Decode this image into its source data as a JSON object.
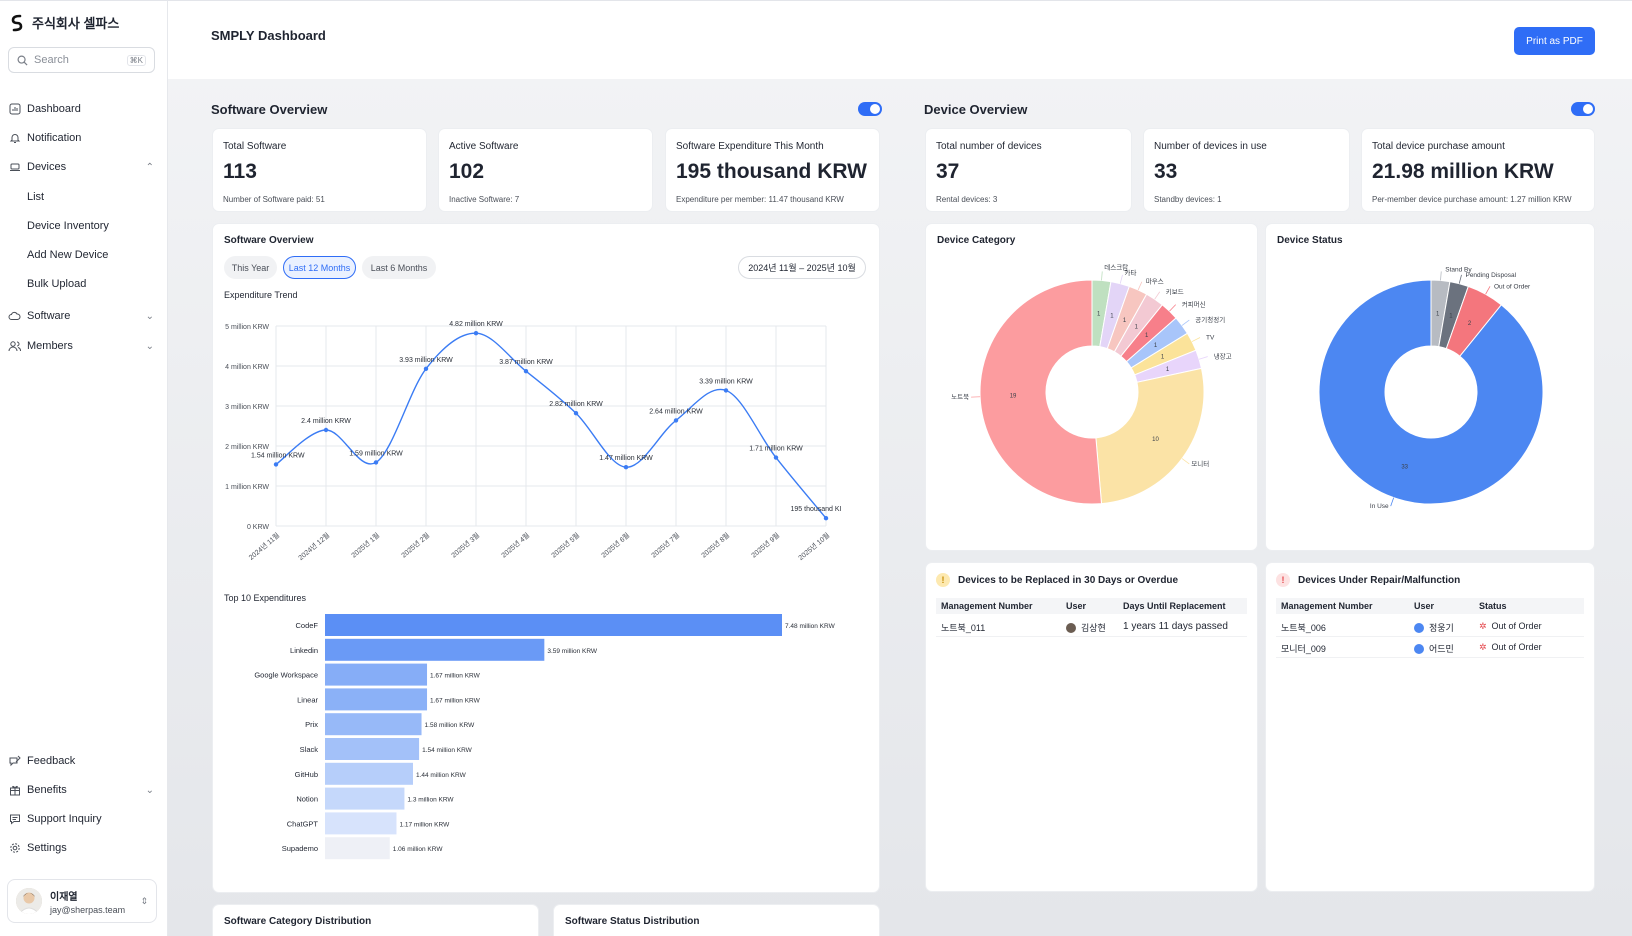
{
  "app": {
    "brand": "주식회사 셀파스"
  },
  "search": {
    "placeholder": "Search",
    "shortcut": "⌘K"
  },
  "sidebar": {
    "dashboard": "Dashboard",
    "notification": "Notification",
    "devices": "Devices",
    "devices_sub": [
      "List",
      "Device Inventory",
      "Add New Device",
      "Bulk Upload"
    ],
    "software": "Software",
    "members": "Members",
    "feedback": "Feedback",
    "benefits": "Benefits",
    "support": "Support Inquiry",
    "settings": "Settings"
  },
  "user": {
    "name": "이재열",
    "email": "jay@sherpas.team"
  },
  "header": {
    "title": "SMPLY Dashboard",
    "print_button": "Print as PDF"
  },
  "software_overview": {
    "title": "Software Overview",
    "stats": [
      {
        "label": "Total Software",
        "value": "113",
        "sub": "Number of Software paid: 51"
      },
      {
        "label": "Active Software",
        "value": "102",
        "sub": "Inactive Software: 7"
      },
      {
        "label": "Software Expenditure This Month",
        "value": "195 thousand KRW",
        "sub": "Expenditure per member: 11.47 thousand KRW"
      }
    ],
    "panel_title": "Software Overview",
    "filters": [
      "This Year",
      "Last 12 Months",
      "Last 6 Months"
    ],
    "date_range": "2024년 11월 – 2025년 10월",
    "trend_title": "Expenditure Trend",
    "top10_title": "Top 10 Expenditures"
  },
  "device_overview": {
    "title": "Device Overview",
    "stats": [
      {
        "label": "Total number of devices",
        "value": "37",
        "sub": "Rental devices: 3"
      },
      {
        "label": "Number of devices in use",
        "value": "33",
        "sub": "Standby devices: 1"
      },
      {
        "label": "Total device purchase amount",
        "value": "21.98 million KRW",
        "sub": "Per-member device purchase amount: 1.27 million KRW"
      }
    ],
    "category_title": "Device Category",
    "status_title": "Device Status"
  },
  "replace_table": {
    "title": "Devices to be Replaced in 30 Days or Overdue",
    "headers": [
      "Management Number",
      "User",
      "Days Until Replacement"
    ],
    "rows": [
      {
        "number": "노트북_011",
        "user": "김상현",
        "days": "1 years 11 days passed"
      }
    ]
  },
  "repair_table": {
    "title": "Devices Under Repair/Malfunction",
    "headers": [
      "Management Number",
      "User",
      "Status"
    ],
    "rows": [
      {
        "number": "노트북_006",
        "user": "정웅기",
        "status": "Out of Order"
      },
      {
        "number": "모니터_009",
        "user": "어드민",
        "status": "Out of Order"
      }
    ]
  },
  "bottom_cards": {
    "category": "Software Category Distribution",
    "status": "Software Status Distribution"
  },
  "chart_data": [
    {
      "type": "line",
      "title": "Expenditure Trend",
      "categories": [
        "2024년 11월",
        "2024년 12월",
        "2025년 1월",
        "2025년 2월",
        "2025년 3월",
        "2025년 4월",
        "2025년 5월",
        "2025년 6월",
        "2025년 7월",
        "2025년 8월",
        "2025년 9월",
        "2025년 10월"
      ],
      "values": [
        1.54,
        2.4,
        1.59,
        3.93,
        4.82,
        3.87,
        2.82,
        1.47,
        2.64,
        3.39,
        1.71,
        0.195
      ],
      "labels": [
        "1.54 million KRW",
        "2.4 million KRW",
        "1.59 million KRW",
        "3.93 million KRW",
        "4.82 million KRW",
        "3.87 million KRW",
        "2.82 million KRW",
        "1.47 million KRW",
        "2.64 million KRW",
        "3.39 million KRW",
        "1.71 million KRW",
        "195 thousand KI"
      ],
      "y_ticks": [
        "0 KRW",
        "1 million KRW",
        "2 million KRW",
        "3 million KRW",
        "4 million KRW",
        "5 million KRW"
      ],
      "ylim": [
        0,
        5
      ],
      "color": "#3b7cf4"
    },
    {
      "type": "bar",
      "orientation": "horizontal",
      "title": "Top 10 Expenditures",
      "categories": [
        "CodeF",
        "Linkedin",
        "Google Workspace",
        "Linear",
        "Prix",
        "Slack",
        "GitHub",
        "Notion",
        "ChatGPT",
        "Supademo"
      ],
      "values": [
        7.48,
        3.59,
        1.67,
        1.67,
        1.58,
        1.54,
        1.44,
        1.3,
        1.17,
        1.06
      ],
      "labels": [
        "7.48 million KRW",
        "3.59 million KRW",
        "1.67 million KRW",
        "1.67 million KRW",
        "1.58 million KRW",
        "1.54 million KRW",
        "1.44 million KRW",
        "1.3 million KRW",
        "1.17 million KRW",
        "1.06 million KRW"
      ],
      "colors": [
        "#5b8ff5",
        "#6a9af6",
        "#86adf7",
        "#8bb1f7",
        "#97b9f8",
        "#a3c1f9",
        "#b6cefa",
        "#c5d8fb",
        "#d7e3fc",
        "#eef0f6"
      ]
    },
    {
      "type": "pie",
      "title": "Device Category",
      "categories": [
        "데스크탑",
        "카타",
        "마우스",
        "키보드",
        "커피머신",
        "공기청정기",
        "TV",
        "냉장고",
        "모니터",
        "노트북"
      ],
      "values": [
        1,
        1,
        1,
        1,
        1,
        1,
        1,
        1,
        10,
        19
      ],
      "colors": [
        "#bfe0c0",
        "#e3d5f7",
        "#f7c6c0",
        "#f3c9d3",
        "#f77f8a",
        "#a8c5fa",
        "#fbe39a",
        "#e8d5fb",
        "#fbe3a6",
        "#fc9c9f"
      ]
    },
    {
      "type": "pie",
      "title": "Device Status",
      "categories": [
        "Stand By",
        "Pending Disposal",
        "Out of Order",
        "In Use"
      ],
      "values": [
        1,
        1,
        2,
        33
      ],
      "colors": [
        "#b7bbc2",
        "#6b727e",
        "#f4767d",
        "#4c87f2"
      ]
    }
  ]
}
